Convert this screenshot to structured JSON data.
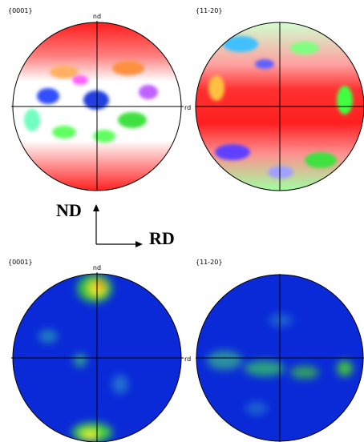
{
  "figures": {
    "top_left": {
      "label": "{0001}",
      "nd": "nd",
      "rd": "rd"
    },
    "top_right": {
      "label": "{11-20}"
    },
    "bottom_left": {
      "label": "{0001}",
      "nd": "nd",
      "rd": "rd"
    },
    "bottom_right": {
      "label": "{11-20}"
    }
  },
  "axes": {
    "nd": "ND",
    "rd": "RD"
  }
}
